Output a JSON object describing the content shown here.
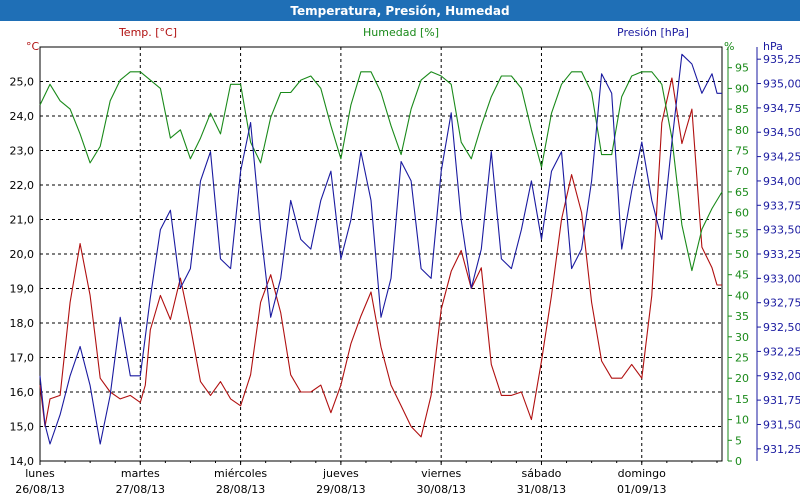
{
  "window": {
    "title": "Temperatura, Presión, Humedad"
  },
  "colors": {
    "title_bar": "#1f6fb6",
    "temperature": "#b01010",
    "humidity": "#1a8a1a",
    "pressure": "#1a1aa0",
    "grid": "#000000"
  },
  "chart_data": {
    "type": "line",
    "grid": true,
    "x_ticks": [
      {
        "day": "lunes",
        "date": "26/08/13"
      },
      {
        "day": "martes",
        "date": "27/08/13"
      },
      {
        "day": "miércoles",
        "date": "28/08/13"
      },
      {
        "day": "jueves",
        "date": "29/08/13"
      },
      {
        "day": "viernes",
        "date": "30/08/13"
      },
      {
        "day": "sábado",
        "date": "31/08/13"
      },
      {
        "day": "domingo",
        "date": "01/09/13"
      }
    ],
    "axes": {
      "temperature": {
        "unit": "°C",
        "label": "Temp. [°C]",
        "min": 14.0,
        "max": 26.0,
        "ticks": [
          "14,0",
          "15,0",
          "16,0",
          "17,0",
          "18,0",
          "19,0",
          "20,0",
          "21,0",
          "22,0",
          "23,0",
          "24,0",
          "25,0"
        ]
      },
      "humidity": {
        "unit": "%",
        "label": "Humedad [%]",
        "min": 0,
        "max": 100,
        "ticks": [
          "0",
          "5",
          "10",
          "15",
          "20",
          "25",
          "30",
          "35",
          "40",
          "45",
          "50",
          "55",
          "60",
          "65",
          "70",
          "75",
          "80",
          "85",
          "90",
          "95"
        ]
      },
      "pressure": {
        "unit": "hPa",
        "label": "Presión [hPa]",
        "min": 931.125,
        "max": 935.375,
        "ticks": [
          "931,25",
          "931,50",
          "931,75",
          "932,00",
          "932,25",
          "932,50",
          "932,75",
          "933,00",
          "933,25",
          "933,50",
          "933,75",
          "934,00",
          "934,25",
          "934,50",
          "934,75",
          "935,00",
          "935,25"
        ]
      }
    },
    "series": [
      {
        "name": "Temp. [°C]",
        "axis": "temperature",
        "x": [
          0,
          0.05,
          0.1,
          0.2,
          0.3,
          0.4,
          0.5,
          0.55,
          0.6,
          0.7,
          0.8,
          0.9,
          1.0,
          1.05,
          1.1,
          1.2,
          1.3,
          1.4,
          1.5,
          1.6,
          1.7,
          1.8,
          1.9,
          2.0,
          2.1,
          2.2,
          2.3,
          2.4,
          2.5,
          2.6,
          2.7,
          2.8,
          2.9,
          3.0,
          3.1,
          3.2,
          3.3,
          3.4,
          3.5,
          3.6,
          3.7,
          3.8,
          3.9,
          4.0,
          4.1,
          4.2,
          4.3,
          4.4,
          4.5,
          4.6,
          4.7,
          4.8,
          4.9,
          5.0,
          5.1,
          5.2,
          5.3,
          5.4,
          5.5,
          5.6,
          5.7,
          5.8,
          5.9,
          6.0,
          6.1,
          6.2,
          6.3,
          6.4,
          6.5,
          6.6,
          6.7,
          6.75,
          6.8
        ],
        "values": [
          16.2,
          15.0,
          15.8,
          15.9,
          18.6,
          20.3,
          18.8,
          17.6,
          16.4,
          16.0,
          15.8,
          15.9,
          15.7,
          16.2,
          17.8,
          18.8,
          18.1,
          19.3,
          17.9,
          16.3,
          15.9,
          16.3,
          15.8,
          15.6,
          16.5,
          18.6,
          19.4,
          18.3,
          16.5,
          16.0,
          16.0,
          16.2,
          15.4,
          16.2,
          17.4,
          18.2,
          18.9,
          17.3,
          16.2,
          15.6,
          15.0,
          14.7,
          15.9,
          18.4,
          19.5,
          20.1,
          19.0,
          19.6,
          16.8,
          15.9,
          15.9,
          16.0,
          15.2,
          16.9,
          18.8,
          21.0,
          22.3,
          21.2,
          18.6,
          16.9,
          16.4,
          16.4,
          16.8,
          16.4,
          18.8,
          23.8,
          25.1,
          23.2,
          24.2,
          20.2,
          19.6,
          19.1,
          19.1
        ]
      },
      {
        "name": "Humedad [%]",
        "axis": "humidity",
        "x": [
          0,
          0.1,
          0.2,
          0.3,
          0.4,
          0.5,
          0.6,
          0.7,
          0.8,
          0.9,
          1.0,
          1.1,
          1.2,
          1.3,
          1.4,
          1.5,
          1.6,
          1.7,
          1.8,
          1.9,
          2.0,
          2.1,
          2.2,
          2.3,
          2.4,
          2.5,
          2.6,
          2.7,
          2.8,
          2.9,
          3.0,
          3.1,
          3.2,
          3.3,
          3.4,
          3.5,
          3.6,
          3.7,
          3.8,
          3.9,
          4.0,
          4.1,
          4.2,
          4.3,
          4.4,
          4.5,
          4.6,
          4.7,
          4.8,
          4.9,
          5.0,
          5.1,
          5.2,
          5.3,
          5.4,
          5.5,
          5.6,
          5.7,
          5.8,
          5.9,
          6.0,
          6.1,
          6.2,
          6.3,
          6.4,
          6.5,
          6.6,
          6.7,
          6.8
        ],
        "values": [
          86,
          91,
          87,
          85,
          79,
          72,
          76,
          87,
          92,
          94,
          94,
          92,
          90,
          78,
          80,
          73,
          78,
          84,
          79,
          91,
          91,
          77,
          72,
          83,
          89,
          89,
          92,
          93,
          90,
          81,
          73,
          86,
          94,
          94,
          89,
          81,
          74,
          85,
          92,
          94,
          93,
          91,
          77,
          73,
          81,
          88,
          93,
          93,
          90,
          80,
          71,
          84,
          91,
          94,
          94,
          89,
          74,
          74,
          88,
          93,
          94,
          94,
          91,
          78,
          57,
          46,
          56,
          61,
          65
        ]
      },
      {
        "name": "Presión [hPa]",
        "axis": "pressure",
        "x": [
          0,
          0.05,
          0.1,
          0.2,
          0.3,
          0.4,
          0.5,
          0.6,
          0.7,
          0.8,
          0.9,
          1.0,
          1.1,
          1.2,
          1.3,
          1.4,
          1.5,
          1.6,
          1.7,
          1.8,
          1.9,
          2.0,
          2.1,
          2.2,
          2.3,
          2.4,
          2.5,
          2.6,
          2.7,
          2.8,
          2.9,
          3.0,
          3.1,
          3.2,
          3.3,
          3.4,
          3.5,
          3.6,
          3.7,
          3.8,
          3.9,
          4.0,
          4.1,
          4.2,
          4.3,
          4.4,
          4.5,
          4.6,
          4.7,
          4.8,
          4.9,
          5.0,
          5.1,
          5.2,
          5.3,
          5.4,
          5.5,
          5.6,
          5.7,
          5.8,
          5.9,
          6.0,
          6.1,
          6.2,
          6.3,
          6.4,
          6.5,
          6.6,
          6.7,
          6.75,
          6.8
        ],
        "values": [
          932.0,
          931.5,
          931.3,
          931.6,
          932.0,
          932.3,
          931.9,
          931.3,
          931.8,
          932.6,
          932.0,
          932.0,
          932.8,
          933.5,
          933.7,
          932.9,
          933.1,
          934.0,
          934.3,
          933.2,
          933.1,
          934.1,
          934.6,
          933.5,
          932.6,
          933.0,
          933.8,
          933.4,
          933.3,
          933.8,
          934.1,
          933.2,
          933.6,
          934.3,
          933.8,
          932.6,
          933.0,
          934.2,
          934.0,
          933.1,
          933.0,
          934.1,
          934.7,
          933.6,
          932.9,
          933.3,
          934.3,
          933.2,
          933.1,
          933.5,
          934.0,
          933.4,
          934.1,
          934.3,
          933.1,
          933.3,
          934.0,
          935.1,
          934.9,
          933.3,
          933.9,
          934.4,
          933.8,
          933.4,
          934.4,
          935.3,
          935.2,
          934.9,
          935.1,
          934.9,
          934.9
        ]
      }
    ]
  }
}
